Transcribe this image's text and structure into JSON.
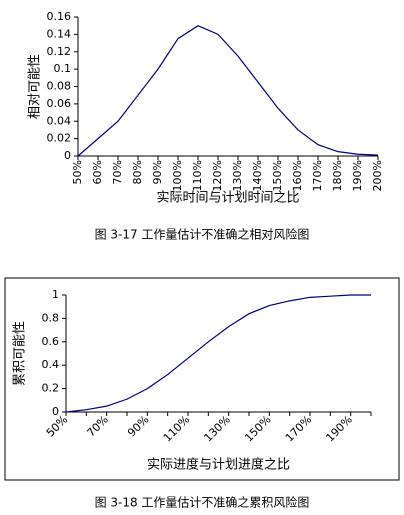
{
  "chart_data": [
    {
      "type": "line",
      "caption": "图 3-17 工作量估计不准确之相对风险图",
      "x_label": "实际时间与计划时间之比",
      "y_label": "相对可能性",
      "categories": [
        "50%",
        "60%",
        "70%",
        "80%",
        "90%",
        "100%",
        "110%",
        "120%",
        "130%",
        "140%",
        "150%",
        "160%",
        "170%",
        "180%",
        "190%",
        "200%"
      ],
      "values": [
        0,
        0.02,
        0.04,
        0.07,
        0.1,
        0.135,
        0.15,
        0.14,
        0.115,
        0.085,
        0.055,
        0.03,
        0.013,
        0.005,
        0.002,
        0.001
      ],
      "color": "#000080",
      "ylim": [
        0,
        0.16
      ],
      "yticks": [
        0,
        0.02,
        0.04,
        0.06,
        0.08,
        0.1,
        0.12,
        0.14,
        0.16
      ]
    },
    {
      "type": "line",
      "caption": "图 3-18 工作量估计不准确之累积风险图",
      "x_label": "实际进度与计划进度之比",
      "y_label": "累积可能性",
      "categories": [
        "50%",
        null,
        "70%",
        null,
        "90%",
        null,
        "110%",
        null,
        "130%",
        null,
        "150%",
        null,
        "170%",
        null,
        "190%",
        null
      ],
      "values": [
        0,
        0.02,
        0.05,
        0.11,
        0.2,
        0.32,
        0.46,
        0.6,
        0.73,
        0.84,
        0.91,
        0.95,
        0.98,
        0.99,
        1.0,
        1.0
      ],
      "color": "#000080",
      "ylim": [
        0,
        1
      ],
      "yticks": [
        0,
        0.2,
        0.4,
        0.6,
        0.8,
        1
      ]
    }
  ]
}
